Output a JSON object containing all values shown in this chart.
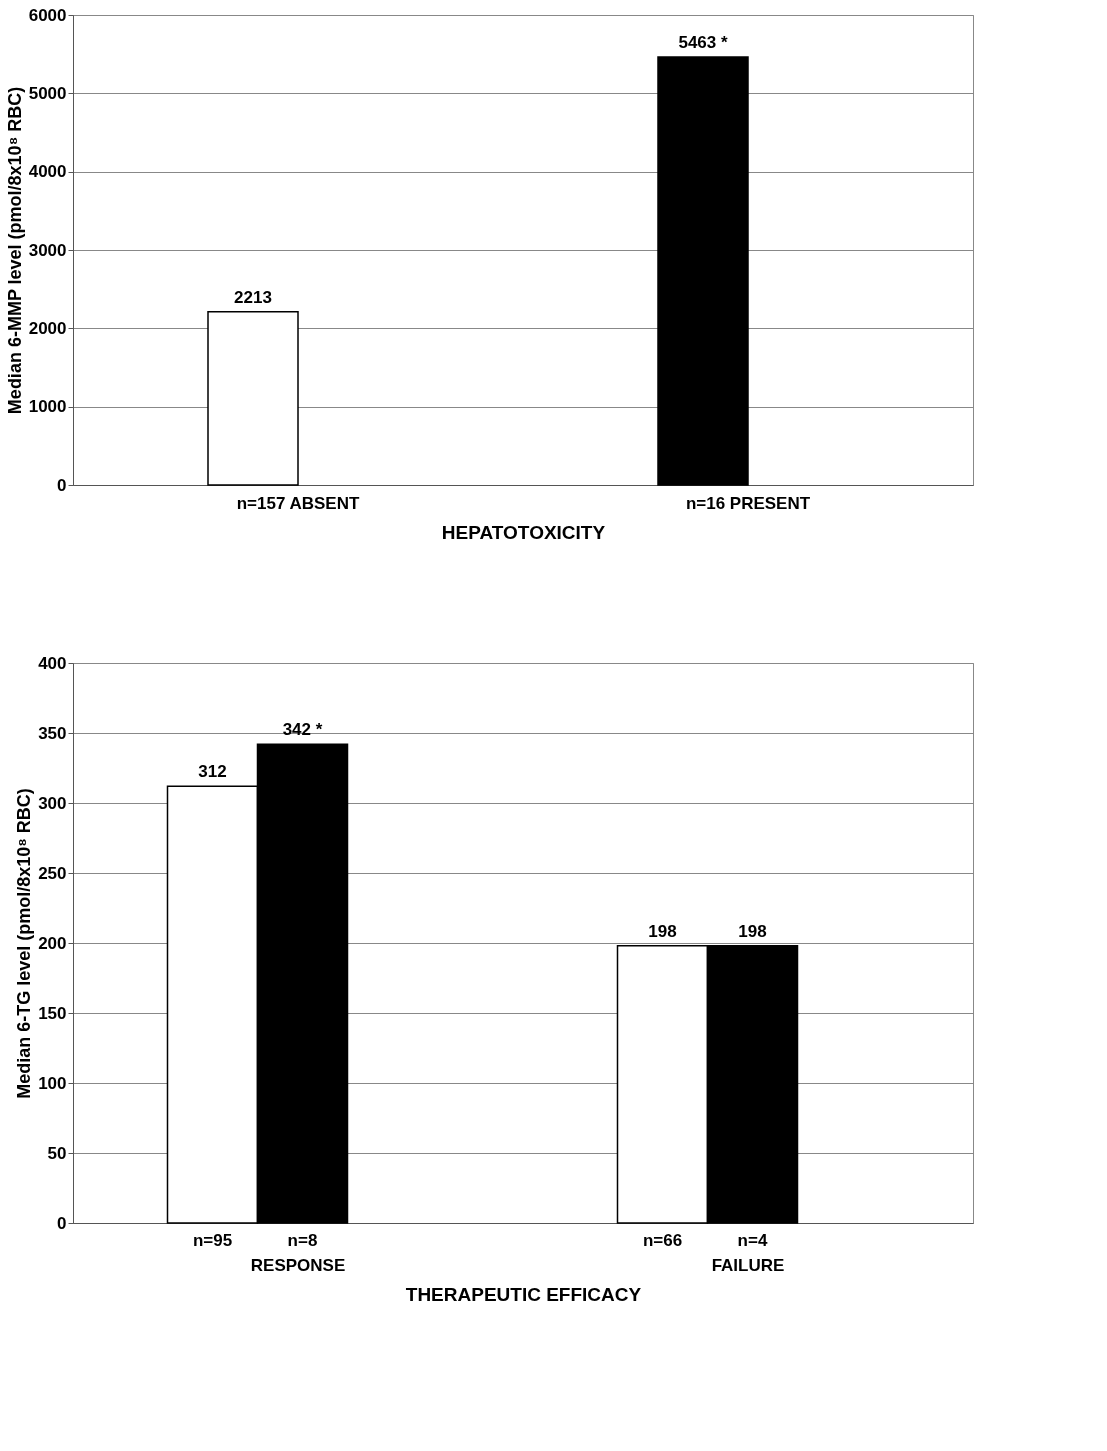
{
  "chart_data": [
    {
      "type": "bar",
      "categories": [
        "n=157 ABSENT",
        "n=16 PRESENT"
      ],
      "xlabel": "HEPATOTOXICITY",
      "ylabel": "Median 6-MMP level (pmol/8x10⁸ RBC)",
      "values": [
        2213,
        5463
      ],
      "colors": [
        "#ffffff",
        "#000000"
      ],
      "value_labels": [
        "2213",
        "5463 *"
      ],
      "ylim": [
        0,
        6000
      ],
      "yticks": [
        0,
        1000,
        2000,
        3000,
        4000,
        5000,
        6000
      ],
      "grid": "y"
    },
    {
      "type": "bar",
      "categories": [
        "RESPONSE",
        "FAILURE"
      ],
      "xlabel": "THERAPEUTIC EFFICACY",
      "ylabel": "Median 6-TG level (pmol/8x10⁸ RBC)",
      "series": [
        {
          "color": "#ffffff",
          "values": [
            312,
            198
          ],
          "value_labels": [
            "312",
            "198"
          ]
        },
        {
          "color": "#000000",
          "values": [
            342,
            198
          ],
          "value_labels": [
            "342 *",
            "198"
          ]
        }
      ],
      "annotations": [
        "n=95",
        "n=8",
        "n=66",
        "n=4"
      ],
      "ylim": [
        0,
        400
      ],
      "yticks": [
        0,
        50,
        100,
        150,
        200,
        250,
        300,
        350,
        400
      ],
      "grid": "y"
    }
  ]
}
